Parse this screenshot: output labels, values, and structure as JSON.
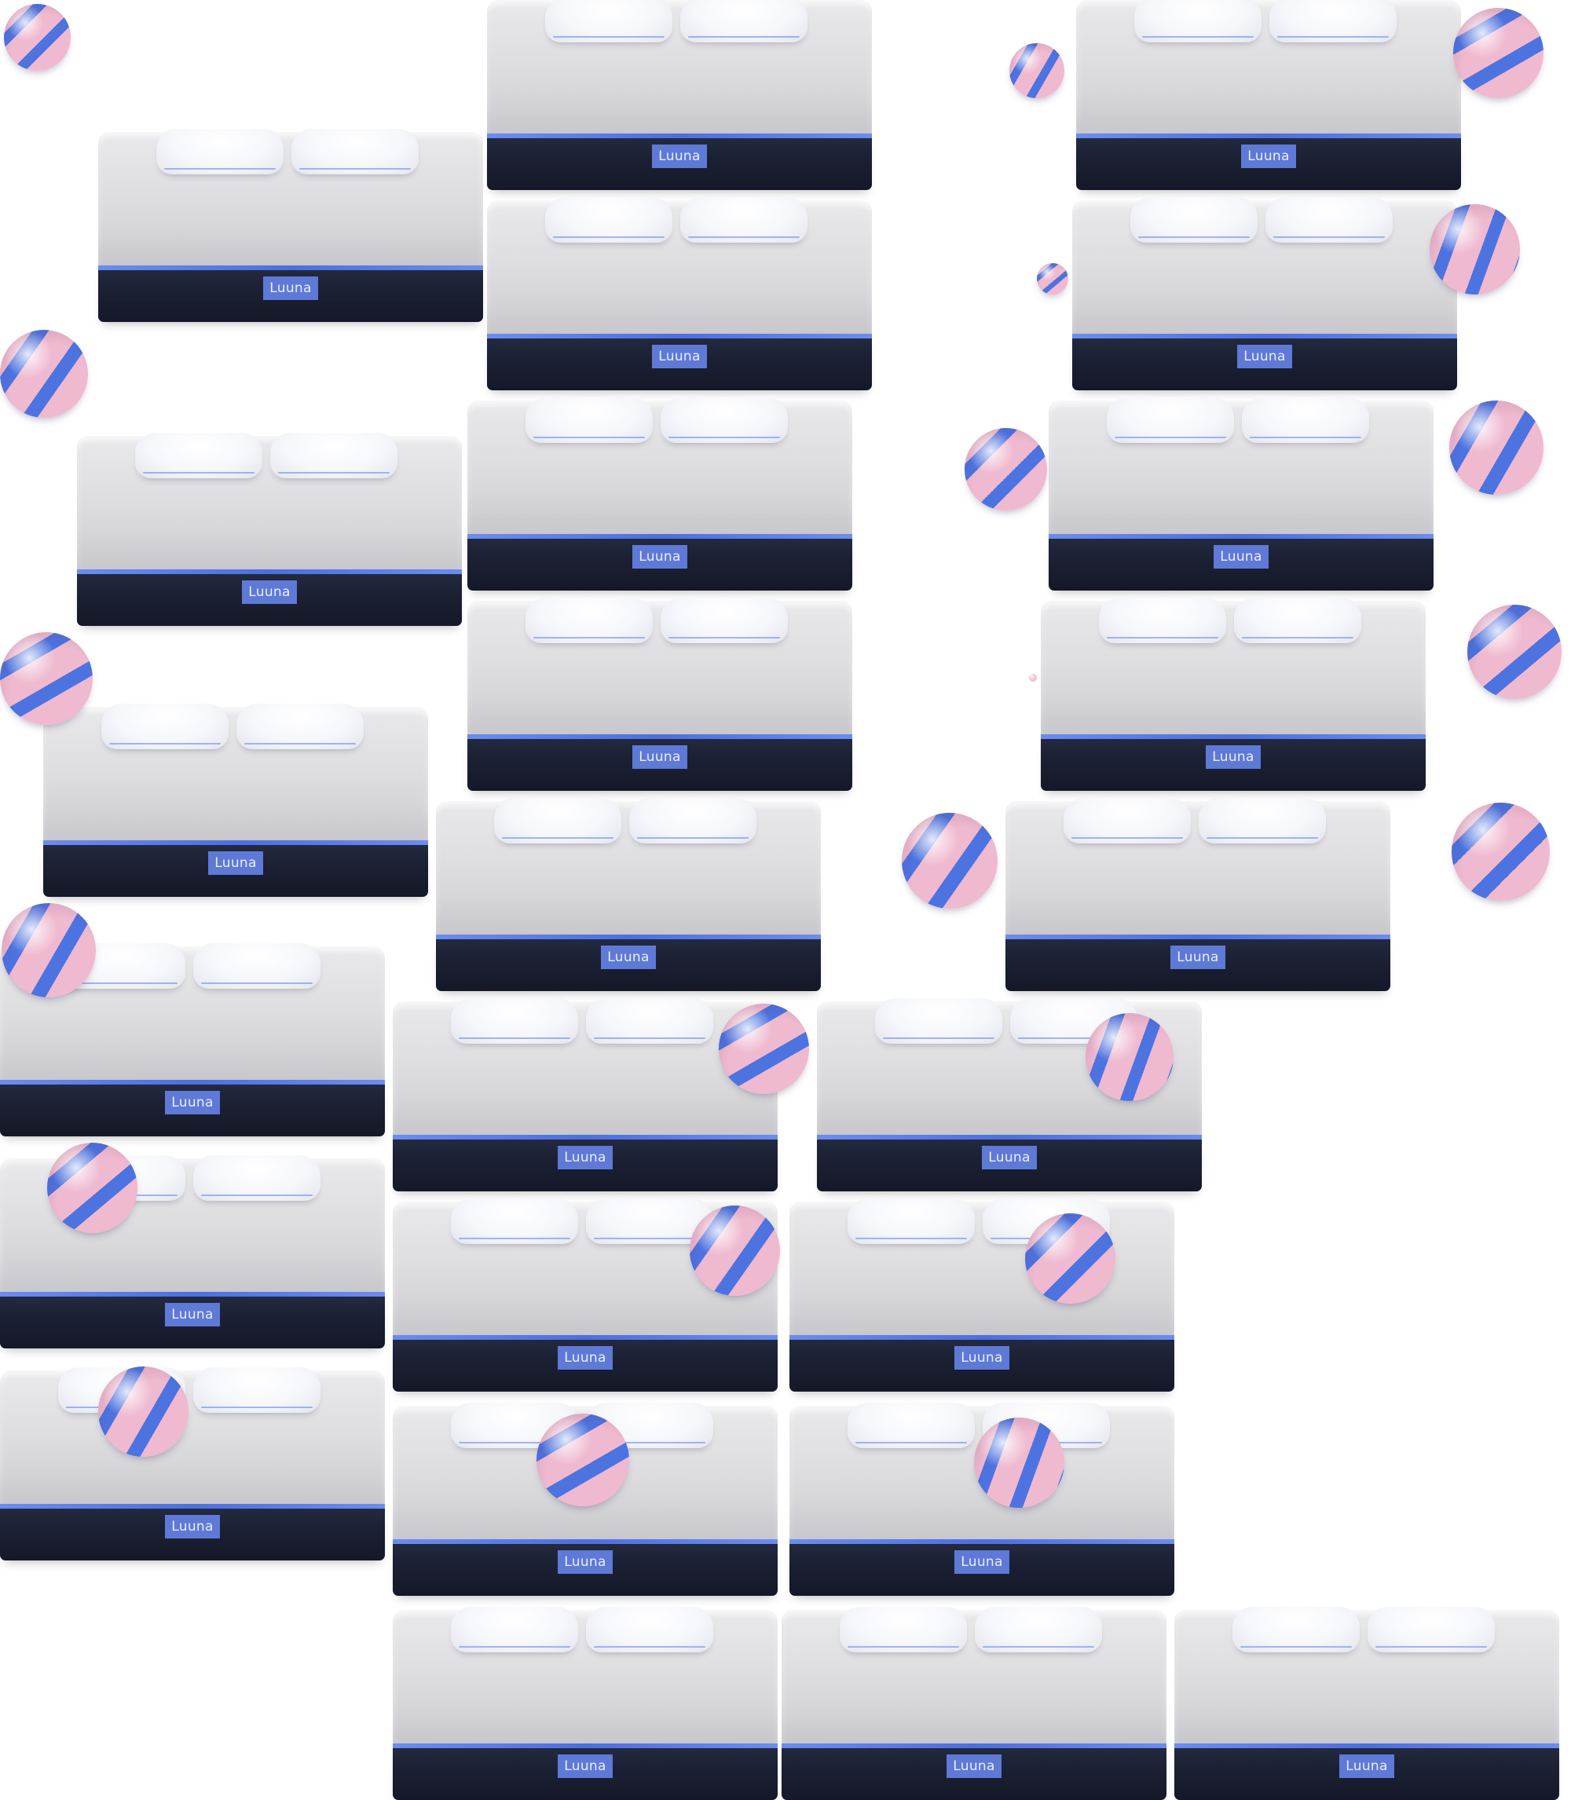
{
  "brand": "Luuna",
  "colors": {
    "mattress_top": "#dedee1",
    "mattress_band": "#1b2033",
    "accent_stripe": "#4c6fe0",
    "label_bg": "#5e79d6",
    "ball_pink": "#efb9cf",
    "ball_blue": "#4d73e0"
  },
  "mattresses": [
    {
      "label": "Luuna"
    },
    {
      "label": "Luuna"
    },
    {
      "label": "Luuna"
    },
    {
      "label": "Luuna"
    },
    {
      "label": "Luuna"
    },
    {
      "label": "Luuna"
    },
    {
      "label": "Luuna"
    },
    {
      "label": "Luuna"
    },
    {
      "label": "Luuna"
    },
    {
      "label": "Luuna"
    },
    {
      "label": "Luuna"
    },
    {
      "label": "Luuna"
    },
    {
      "label": "Luuna"
    },
    {
      "label": "Luuna"
    },
    {
      "label": "Luuna"
    },
    {
      "label": "Luuna"
    },
    {
      "label": "Luuna"
    },
    {
      "label": "Luuna"
    },
    {
      "label": "Luuna"
    },
    {
      "label": "Luuna"
    },
    {
      "label": "Luuna"
    },
    {
      "label": "Luuna"
    },
    {
      "label": "Luuna"
    },
    {
      "label": "Luuna"
    },
    {
      "label": "Luuna"
    }
  ],
  "ball_icon": "striped-ball-icon"
}
